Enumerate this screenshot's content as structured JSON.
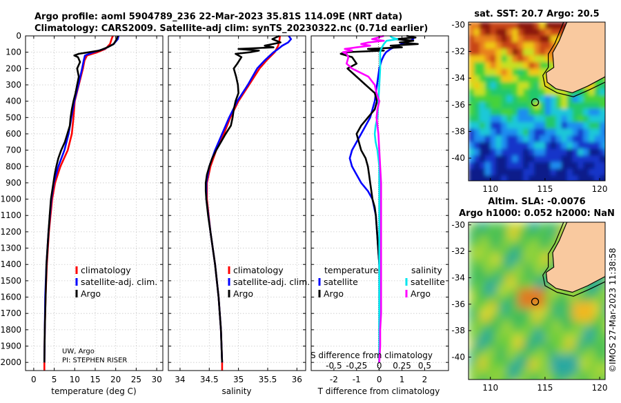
{
  "header": {
    "title_line1": "Argo profile: aoml 5904789_236 22-Mar-2023 35.81S 114.09E (NRT data)",
    "title_line2": "Climatology: CARS2009. Satellite-adj clim: synTS_20230322.nc (0.71d earlier)"
  },
  "credits": {
    "line1": "UW, Argo",
    "line2": "PI: STEPHEN RISER",
    "stamp": "©IMOS 27-Mar-2023 11:38:58"
  },
  "colors": {
    "red": "#ff0000",
    "blue": "#0000ff",
    "black": "#000000",
    "cyan": "#00e5ee",
    "magenta": "#ff00ff",
    "land": "#f9c99f"
  },
  "depth_axis": {
    "ticks": [
      "0",
      "100",
      "200",
      "300",
      "400",
      "500",
      "600",
      "700",
      "800",
      "900",
      "1000",
      "1100",
      "1200",
      "1300",
      "1400",
      "1500",
      "1600",
      "1700",
      "1800",
      "1900",
      "2000"
    ]
  },
  "chart_data": [
    {
      "type": "line",
      "panel": "temperature",
      "xlabel": "temperature (deg C)",
      "xlim": [
        -2,
        31.5
      ],
      "ylim": [
        0,
        2050
      ],
      "xticks": [
        "0",
        "5",
        "10",
        "15",
        "20",
        "25",
        "30"
      ],
      "xtick_values": [
        0,
        5,
        10,
        15,
        20,
        25,
        30
      ],
      "legend": [
        "climatology",
        "satellite-adj. clim.",
        "Argo"
      ],
      "series": [
        {
          "name": "climatology",
          "color": "red",
          "depth": [
            0,
            20,
            50,
            80,
            100,
            120,
            150,
            200,
            300,
            400,
            500,
            600,
            700,
            800,
            900,
            1000,
            1200,
            1400,
            1600,
            1800,
            2000,
            2050
          ],
          "values": [
            19.3,
            19.0,
            18.6,
            17.5,
            15.5,
            13.0,
            12.4,
            12.0,
            11.0,
            10.0,
            9.7,
            9.3,
            8.3,
            6.5,
            5.2,
            4.5,
            3.7,
            3.2,
            2.9,
            2.7,
            2.6,
            2.6
          ]
        },
        {
          "name": "satellite-adj. clim.",
          "color": "blue",
          "depth": [
            0,
            20,
            50,
            80,
            100,
            120,
            150,
            200,
            300,
            400,
            500,
            600,
            700,
            800,
            900,
            1000,
            1200,
            1400,
            1600,
            1800,
            2000
          ],
          "values": [
            20.7,
            20.5,
            19.5,
            17.2,
            14.5,
            12.5,
            12.2,
            11.8,
            10.9,
            9.9,
            9.2,
            8.5,
            7.5,
            6.0,
            4.9,
            4.3,
            3.6,
            3.1,
            2.8,
            2.7,
            2.6
          ]
        },
        {
          "name": "Argo",
          "color": "black",
          "depth": [
            0,
            15,
            30,
            50,
            70,
            90,
            100,
            110,
            120,
            130,
            160,
            200,
            250,
            300,
            350,
            400,
            450,
            500,
            550,
            600,
            650,
            700,
            750,
            800,
            850,
            900,
            950,
            1000,
            1100,
            1200,
            1400,
            1600,
            1800,
            2000
          ],
          "values": [
            20.5,
            20.3,
            20.0,
            19.5,
            18.0,
            16.0,
            13.5,
            11.0,
            9.9,
            10.8,
            11.3,
            10.6,
            11.0,
            10.6,
            10.2,
            9.7,
            9.3,
            9.0,
            8.8,
            8.2,
            7.6,
            6.7,
            6.0,
            5.5,
            5.1,
            4.8,
            4.5,
            4.2,
            3.9,
            3.6,
            3.1,
            2.9,
            2.7,
            2.6
          ]
        }
      ],
      "annotations": [
        "UW, Argo",
        "PI: STEPHEN RISER"
      ]
    },
    {
      "type": "line",
      "panel": "salinity",
      "xlabel": "salinity",
      "xlim": [
        33.8,
        36.15
      ],
      "ylim": [
        0,
        2050
      ],
      "xticks": [
        "34",
        "34.5",
        "35",
        "35.5",
        "36"
      ],
      "xtick_values": [
        34,
        34.5,
        35,
        35.5,
        36
      ],
      "legend": [
        "climatology",
        "satellite-adj. clim.",
        "Argo"
      ],
      "series": [
        {
          "name": "climatology",
          "color": "red",
          "depth": [
            0,
            30,
            60,
            100,
            150,
            200,
            300,
            400,
            500,
            600,
            700,
            800,
            900,
            1000,
            1200,
            1400,
            1600,
            1800,
            2000,
            2050
          ],
          "values": [
            35.71,
            35.7,
            35.68,
            35.62,
            35.48,
            35.36,
            35.18,
            35.0,
            34.86,
            34.75,
            34.62,
            34.52,
            34.46,
            34.46,
            34.52,
            34.6,
            34.66,
            34.7,
            34.72,
            34.72
          ]
        },
        {
          "name": "satellite-adj. clim.",
          "color": "blue",
          "depth": [
            0,
            20,
            40,
            60,
            80,
            100,
            150,
            200,
            300,
            400,
            500,
            600,
            700,
            800,
            900,
            1000,
            1200,
            1400,
            1600,
            1800,
            2000
          ],
          "values": [
            35.86,
            35.9,
            35.85,
            35.75,
            35.68,
            35.6,
            35.45,
            35.32,
            35.16,
            34.98,
            34.84,
            34.72,
            34.6,
            34.5,
            34.45,
            34.45,
            34.52,
            34.6,
            34.66,
            34.7,
            34.72
          ]
        },
        {
          "name": "Argo",
          "color": "black",
          "depth": [
            0,
            20,
            40,
            60,
            70,
            80,
            90,
            100,
            110,
            130,
            170,
            200,
            250,
            300,
            350,
            400,
            450,
            500,
            550,
            600,
            650,
            700,
            750,
            800,
            850,
            900,
            950,
            1000,
            1100,
            1200,
            1400,
            1600,
            1800,
            2000
          ],
          "values": [
            35.7,
            35.58,
            35.72,
            35.45,
            35.6,
            35.0,
            35.35,
            35.2,
            34.95,
            35.05,
            34.98,
            34.92,
            34.96,
            34.99,
            35.0,
            34.95,
            34.92,
            34.9,
            34.87,
            34.78,
            34.7,
            34.62,
            34.55,
            34.5,
            34.46,
            34.44,
            34.44,
            34.45,
            34.48,
            34.52,
            34.6,
            34.66,
            34.7,
            34.72
          ]
        }
      ]
    },
    {
      "type": "line",
      "panel": "differences",
      "xlabel": "T difference from climatology",
      "xlabel_top": "S difference from climatology",
      "xlim": [
        -3.0,
        3.05
      ],
      "ylim": [
        0,
        2050
      ],
      "xticks": [
        "-2",
        "-1",
        "0",
        "1",
        "2"
      ],
      "xtick_values": [
        -2,
        -1,
        0,
        1,
        2
      ],
      "s_ticks": [
        "-0.5",
        "-0.25",
        "0",
        "0.25",
        "0.5"
      ],
      "s_tick_values": [
        -0.5,
        -0.25,
        0,
        0.25,
        0.5
      ],
      "s_scale": 4,
      "legend_headers": [
        "temperature",
        "salinity"
      ],
      "legend": [
        "satellite",
        "Argo",
        "satellite",
        "Argo"
      ],
      "series": [
        {
          "name": "T satellite",
          "color": "blue",
          "depth": [
            0,
            20,
            40,
            60,
            80,
            100,
            120,
            150,
            200,
            300,
            400,
            500,
            600,
            700,
            750,
            800,
            850,
            900,
            950,
            1000,
            1100,
            1200,
            1300,
            1400,
            1600,
            2000
          ],
          "values": [
            1.4,
            1.5,
            1.2,
            0.8,
            0.5,
            0.3,
            0.2,
            0.1,
            0,
            -0.1,
            -0.2,
            -0.4,
            -0.8,
            -1.2,
            -1.3,
            -1.2,
            -1.0,
            -0.8,
            -0.5,
            -0.3,
            -0.15,
            -0.1,
            -0.05,
            0,
            0,
            0
          ]
        },
        {
          "name": "T Argo",
          "color": "black",
          "depth": [
            0,
            10,
            20,
            30,
            40,
            50,
            60,
            70,
            80,
            90,
            100,
            110,
            130,
            150,
            170,
            200,
            250,
            300,
            350,
            400,
            450,
            500,
            550,
            600,
            650,
            700,
            750,
            800,
            850,
            900,
            950,
            1000,
            1050,
            1100,
            1200,
            1300,
            1400
          ],
          "values": [
            1.2,
            1.6,
            0.7,
            1.5,
            0.9,
            1.7,
            0.5,
            1.0,
            -0.5,
            0.2,
            -1.5,
            -1.7,
            -1.2,
            -1.1,
            -1.0,
            -1.4,
            -1.0,
            -0.6,
            -0.2,
            -0.1,
            -0.2,
            -0.5,
            -0.8,
            -1.0,
            -0.9,
            -0.8,
            -0.6,
            -0.5,
            -0.45,
            -0.4,
            -0.35,
            -0.3,
            -0.2,
            -0.15,
            -0.1,
            -0.05,
            0
          ]
        },
        {
          "name": "S satellite",
          "color": "cyan",
          "depth": [
            0,
            10,
            20,
            30,
            50,
            80,
            100,
            200,
            300,
            400,
            500,
            550,
            600,
            650,
            700,
            750,
            800,
            900,
            1000,
            1200,
            1400,
            2000
          ],
          "values": [
            0.12,
            0.14,
            0.2,
            0.08,
            0.05,
            0.02,
            0.01,
            0.01,
            0.0,
            -0.01,
            -0.02,
            -0.04,
            -0.05,
            -0.04,
            -0.02,
            -0.01,
            0,
            0,
            0,
            0,
            0,
            0
          ]
        },
        {
          "name": "S Argo",
          "color": "magenta",
          "depth": [
            0,
            20,
            30,
            40,
            50,
            60,
            70,
            80,
            90,
            100,
            110,
            130,
            170,
            200,
            250,
            300,
            350,
            400,
            450,
            500,
            550,
            600,
            700,
            800,
            900,
            1000,
            1100,
            1200,
            1300,
            1400,
            1500,
            1600,
            1700,
            1800,
            1900,
            2000
          ],
          "values": [
            0.05,
            -0.08,
            0.05,
            -0.12,
            -0.2,
            -0.1,
            -0.25,
            -0.38,
            -0.3,
            -0.4,
            -0.36,
            -0.34,
            -0.36,
            -0.3,
            -0.12,
            -0.05,
            -0.03,
            0.0,
            -0.02,
            -0.03,
            -0.02,
            -0.01,
            0,
            0.01,
            0.02,
            0.02,
            0.02,
            0.02,
            0.02,
            0.02,
            0.02,
            0.02,
            0.02,
            0.01,
            0.01,
            0.0
          ]
        }
      ]
    },
    {
      "type": "heatmap",
      "panel": "sst-map",
      "title": "sat. SST: 20.7 Argo: 20.5",
      "xticks": [
        "110",
        "115",
        "120"
      ],
      "yticks": [
        "-30",
        "-32",
        "-34",
        "-36",
        "-38",
        "-40"
      ],
      "xlim": [
        108,
        120.5
      ],
      "ylim": [
        -41.7,
        -29.8
      ],
      "float_position": [
        114.09,
        -35.81
      ]
    },
    {
      "type": "heatmap",
      "panel": "sla-map",
      "title": "Altim. SLA: -0.0076",
      "subtitle": "Argo h1000: 0.052 h2000: NaN",
      "xticks": [
        "110",
        "115",
        "120"
      ],
      "yticks": [
        "-30",
        "-32",
        "-34",
        "-36",
        "-38",
        "-40"
      ],
      "xlim": [
        108,
        120.5
      ],
      "ylim": [
        -41.7,
        -29.8
      ],
      "float_position": [
        114.09,
        -35.81
      ]
    }
  ]
}
